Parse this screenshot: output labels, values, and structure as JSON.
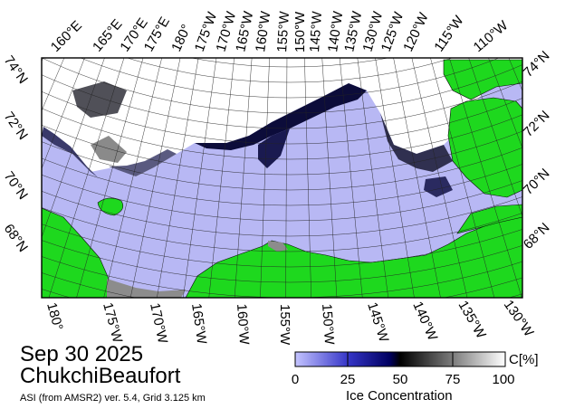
{
  "date": "Sep 30 2025",
  "region": "ChukchiBeaufort",
  "product": "ASI (from AMSR2) ver. 5.4,  Grid 3.125 km",
  "top_lon_labels": [
    "160°E",
    "165°E",
    "170°E",
    "175°E",
    "180°",
    "175°W",
    "170°W",
    "165°W",
    "160°W",
    "155°W",
    "150°W",
    "145°W",
    "140°W",
    "135°W",
    "130°W",
    "125°W",
    "120°W",
    "115°W",
    "110°W"
  ],
  "bottom_lon_labels": [
    "180°",
    "175°W",
    "170°W",
    "165°W",
    "160°W",
    "155°W",
    "150°W",
    "145°W",
    "140°W",
    "135°W",
    "130°W"
  ],
  "left_lat_labels": [
    "74°N",
    "72°N",
    "70°N",
    "68°N"
  ],
  "right_lat_labels": [
    "74°N",
    "72°N",
    "70°N",
    "68°N"
  ],
  "colorbar": {
    "title": "Ice Concentration",
    "unit": "C[%]",
    "ticks": [
      "0",
      "25",
      "50",
      "75",
      "100"
    ]
  },
  "colors": {
    "open_water": "#b8b8f4",
    "land": "#1ed81e",
    "sea_ice": "#ffffff",
    "no_data": "#8c8c8c"
  }
}
